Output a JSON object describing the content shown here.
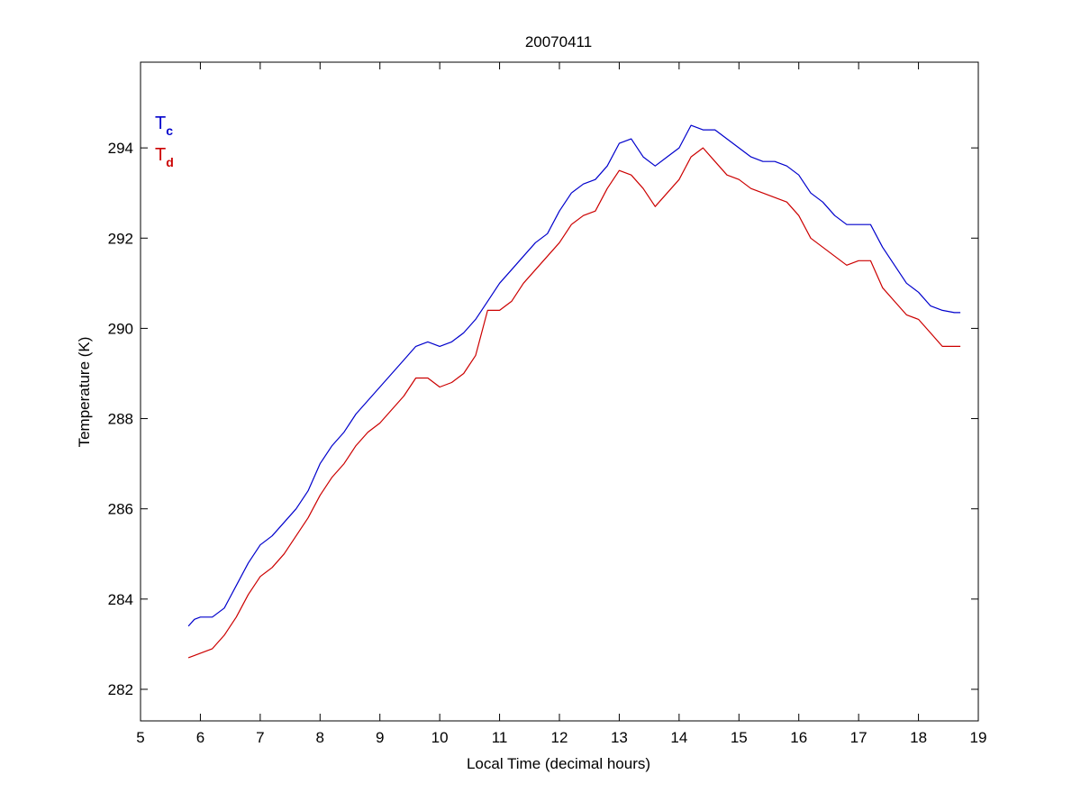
{
  "chart_data": {
    "type": "line",
    "title": "20070411",
    "xlabel": "Local Time (decimal hours)",
    "ylabel": "Temperature (K)",
    "xlim": [
      5,
      19
    ],
    "ylim": [
      281.3,
      295.9
    ],
    "xticks": [
      5,
      6,
      7,
      8,
      9,
      10,
      11,
      12,
      13,
      14,
      15,
      16,
      17,
      18,
      19
    ],
    "yticks": [
      282,
      284,
      286,
      288,
      290,
      292,
      294
    ],
    "grid": false,
    "legend_position": "top-left",
    "series": [
      {
        "name": "T_c",
        "legend_main": "T",
        "legend_sub": "c",
        "color": "#0000cc",
        "x": [
          5.8,
          5.9,
          6.0,
          6.2,
          6.4,
          6.6,
          6.8,
          7.0,
          7.2,
          7.4,
          7.6,
          7.8,
          8.0,
          8.2,
          8.4,
          8.6,
          8.8,
          9.0,
          9.2,
          9.4,
          9.6,
          9.8,
          10.0,
          10.2,
          10.4,
          10.6,
          10.8,
          11.0,
          11.2,
          11.4,
          11.6,
          11.8,
          12.0,
          12.2,
          12.4,
          12.6,
          12.8,
          13.0,
          13.2,
          13.4,
          13.6,
          13.8,
          14.0,
          14.2,
          14.4,
          14.6,
          14.8,
          15.0,
          15.2,
          15.4,
          15.6,
          15.8,
          16.0,
          16.2,
          16.4,
          16.6,
          16.8,
          17.0,
          17.2,
          17.4,
          17.6,
          17.8,
          18.0,
          18.2,
          18.4,
          18.6,
          18.7
        ],
        "y": [
          283.4,
          283.55,
          283.6,
          283.6,
          283.8,
          284.3,
          284.8,
          285.2,
          285.4,
          285.7,
          286.0,
          286.4,
          287.0,
          287.4,
          287.7,
          288.1,
          288.4,
          288.7,
          289.0,
          289.3,
          289.6,
          289.7,
          289.6,
          289.7,
          289.9,
          290.2,
          290.6,
          291.0,
          291.3,
          291.6,
          291.9,
          292.1,
          292.6,
          293.0,
          293.2,
          293.3,
          293.6,
          294.1,
          294.2,
          293.8,
          293.6,
          293.8,
          294.0,
          294.5,
          294.4,
          294.4,
          294.2,
          294.0,
          293.8,
          293.7,
          293.7,
          293.6,
          293.4,
          293.0,
          292.8,
          292.5,
          292.3,
          292.3,
          292.3,
          291.8,
          291.4,
          291.0,
          290.8,
          290.5,
          290.4,
          290.35,
          290.35
        ]
      },
      {
        "name": "T_d",
        "legend_main": "T",
        "legend_sub": "d",
        "color": "#cc0000",
        "x": [
          5.8,
          5.9,
          6.0,
          6.2,
          6.4,
          6.6,
          6.8,
          7.0,
          7.2,
          7.4,
          7.6,
          7.8,
          8.0,
          8.2,
          8.4,
          8.6,
          8.8,
          9.0,
          9.2,
          9.4,
          9.6,
          9.8,
          10.0,
          10.2,
          10.4,
          10.6,
          10.8,
          11.0,
          11.2,
          11.4,
          11.6,
          11.8,
          12.0,
          12.2,
          12.4,
          12.6,
          12.8,
          13.0,
          13.2,
          13.4,
          13.6,
          13.8,
          14.0,
          14.2,
          14.4,
          14.6,
          14.8,
          15.0,
          15.2,
          15.4,
          15.6,
          15.8,
          16.0,
          16.2,
          16.4,
          16.6,
          16.8,
          17.0,
          17.2,
          17.4,
          17.6,
          17.8,
          18.0,
          18.2,
          18.4,
          18.6,
          18.7
        ],
        "y": [
          282.7,
          282.75,
          282.8,
          282.9,
          283.2,
          283.6,
          284.1,
          284.5,
          284.7,
          285.0,
          285.4,
          285.8,
          286.3,
          286.7,
          287.0,
          287.4,
          287.7,
          287.9,
          288.2,
          288.5,
          288.9,
          288.9,
          288.7,
          288.8,
          289.0,
          289.4,
          290.4,
          290.4,
          290.6,
          291.0,
          291.3,
          291.6,
          291.9,
          292.3,
          292.5,
          292.6,
          293.1,
          293.5,
          293.4,
          293.1,
          292.7,
          293.0,
          293.3,
          293.8,
          294.0,
          293.7,
          293.4,
          293.3,
          293.1,
          293.0,
          292.9,
          292.8,
          292.5,
          292.0,
          291.8,
          291.6,
          291.4,
          291.5,
          291.5,
          290.9,
          290.6,
          290.3,
          290.2,
          289.9,
          289.6,
          289.6,
          289.6
        ]
      }
    ]
  }
}
